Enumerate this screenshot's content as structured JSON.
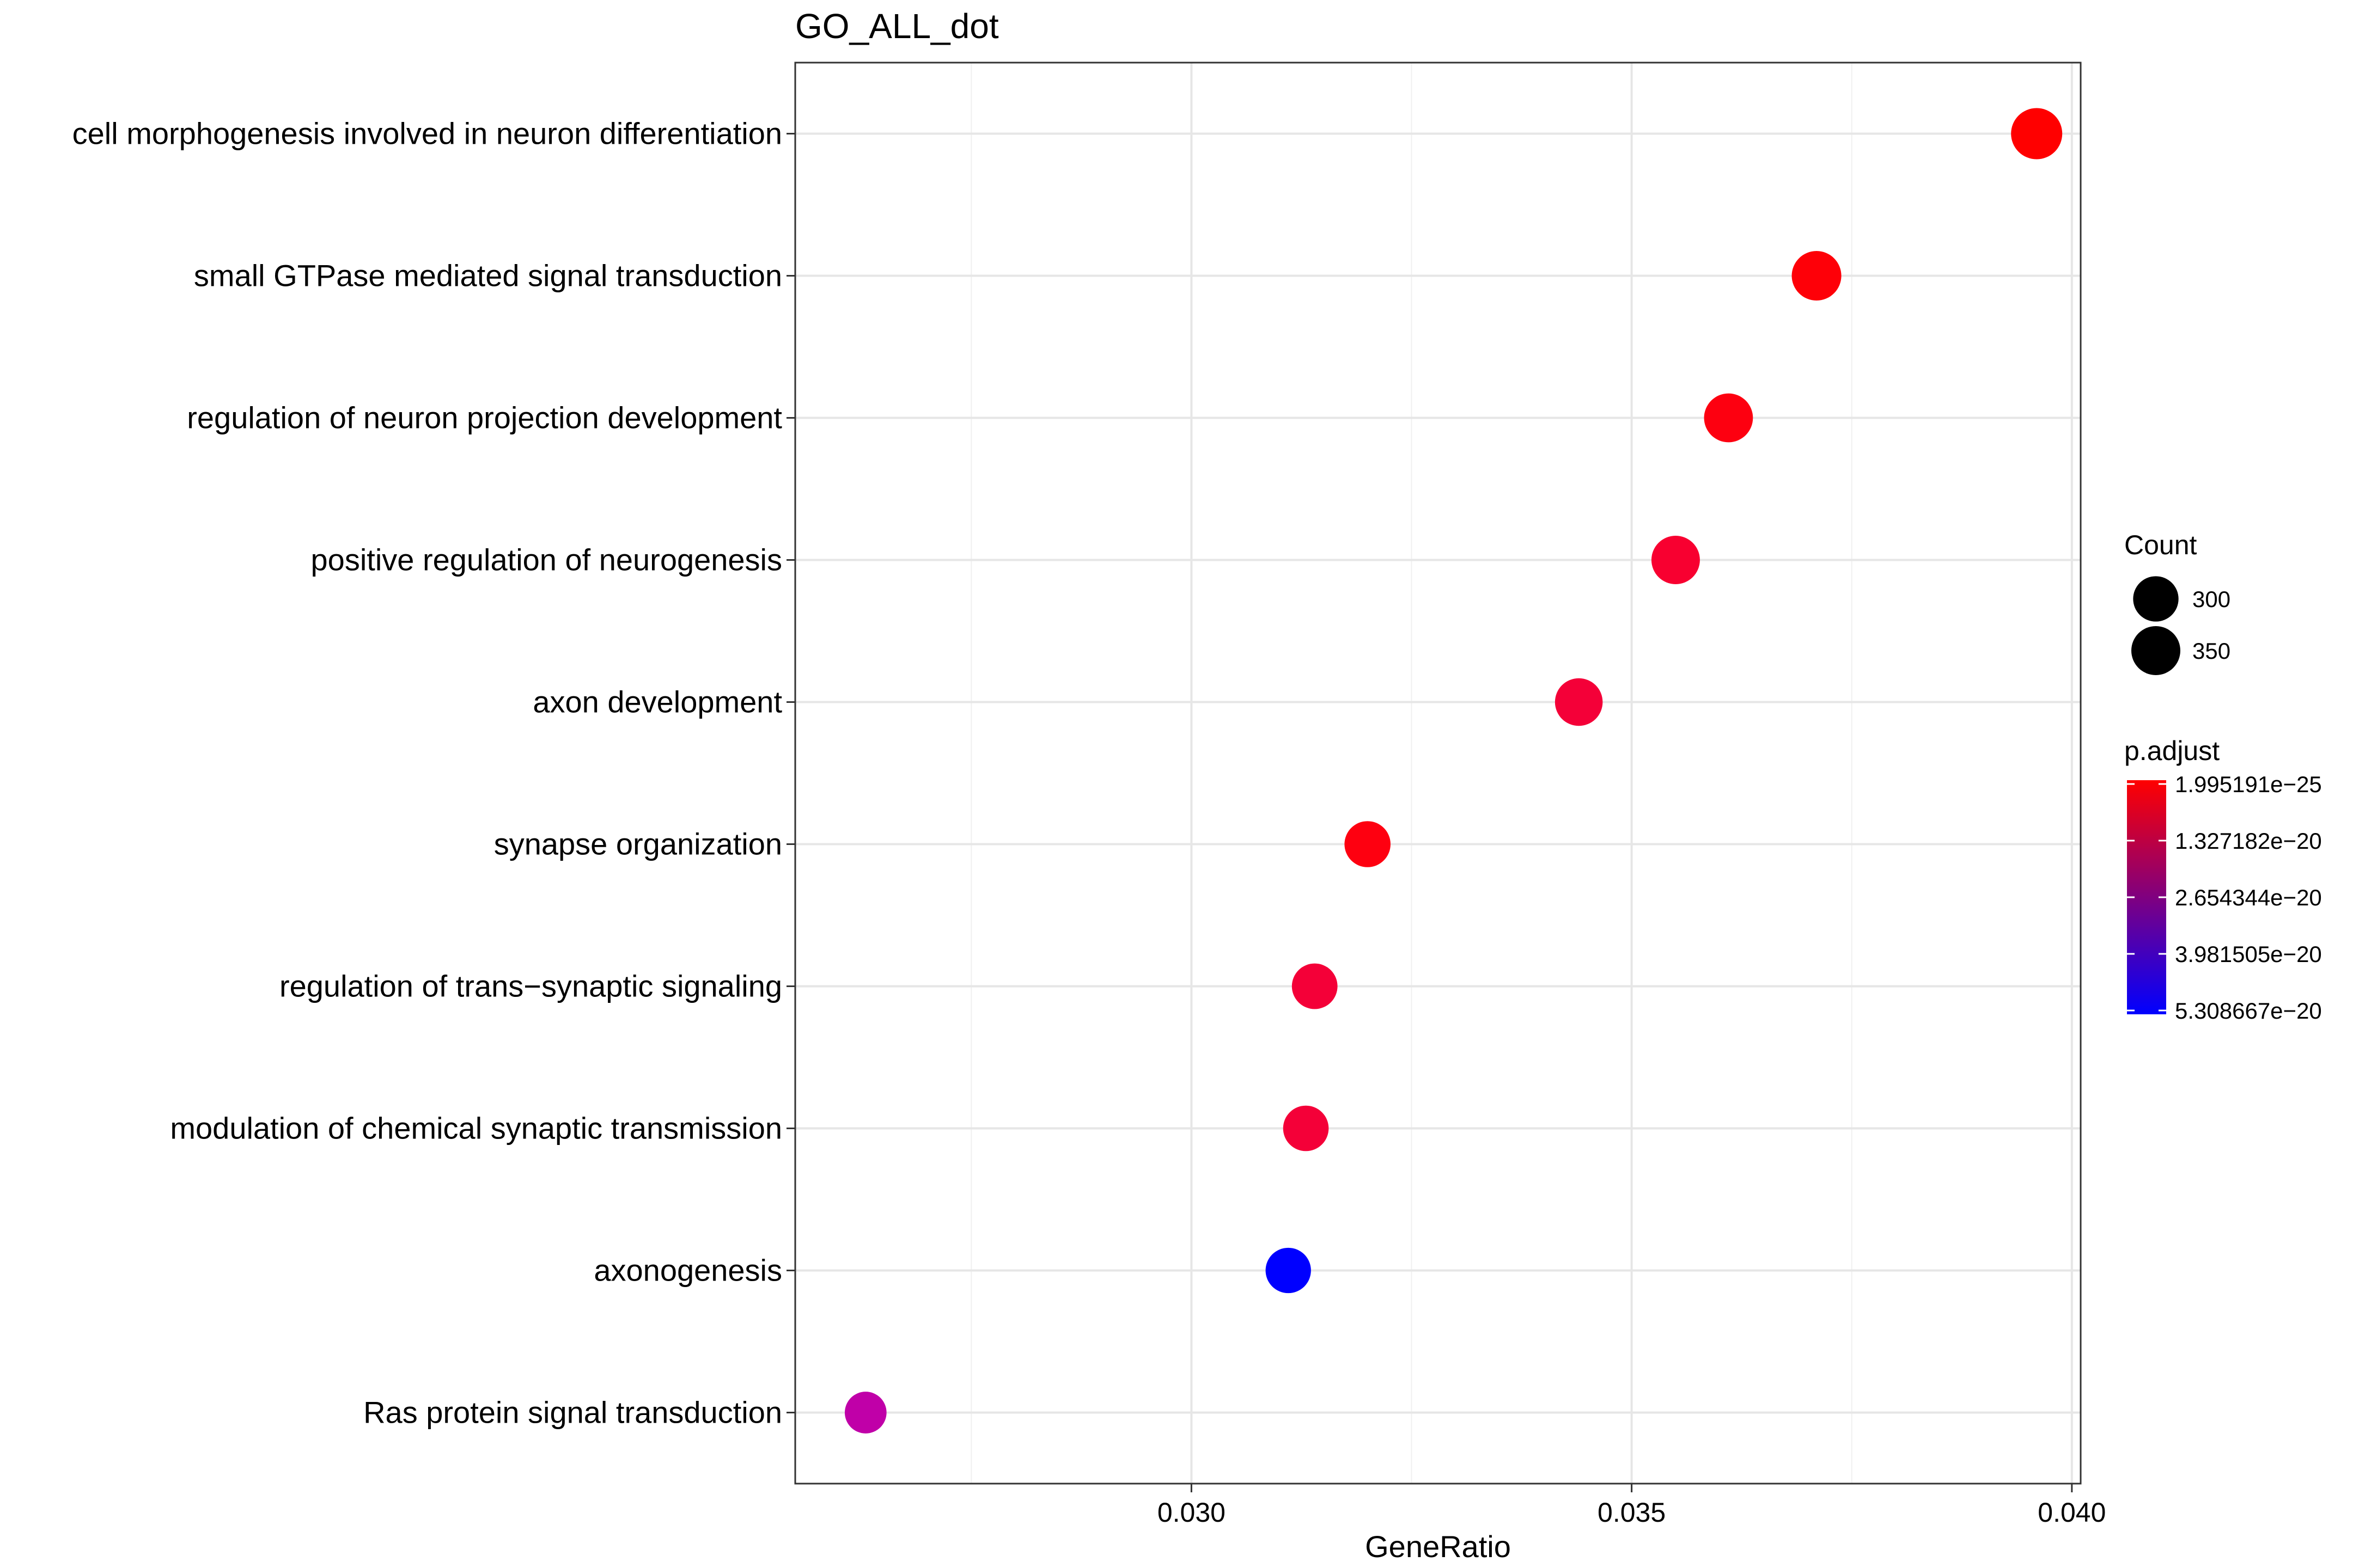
{
  "chart_data": {
    "type": "scatter",
    "title": "GO_ALL_dot",
    "xlabel": "GeneRatio",
    "ylabel": "",
    "xlim": [
      0.0255,
      0.0401
    ],
    "x_ticks": [
      {
        "value": 0.03,
        "label": "0.030"
      },
      {
        "value": 0.035,
        "label": "0.035"
      },
      {
        "value": 0.04,
        "label": "0.040"
      }
    ],
    "grid": true,
    "categories": [
      "cell morphogenesis involved in neuron differentiation",
      "small GTPase mediated signal transduction",
      "regulation of neuron projection development",
      "positive regulation of neurogenesis",
      "axon development",
      "synapse organization",
      "regulation of trans−synaptic signaling",
      "modulation of chemical synaptic transmission",
      "axonogenesis",
      "Ras protein signal transduction"
    ],
    "points": [
      {
        "term": "cell morphogenesis involved in neuron differentiation",
        "gene_ratio": 0.0396,
        "count": 382,
        "p_adjust": 2e-25,
        "color": "#ff0000"
      },
      {
        "term": "small GTPase mediated signal transduction",
        "gene_ratio": 0.0371,
        "count": 358,
        "p_adjust": 1e-22,
        "color": "#fe0008"
      },
      {
        "term": "regulation of neuron projection development",
        "gene_ratio": 0.0361,
        "count": 348,
        "p_adjust": 2e-22,
        "color": "#fd0010"
      },
      {
        "term": "positive regulation of neurogenesis",
        "gene_ratio": 0.0355,
        "count": 342,
        "p_adjust": 7e-21,
        "color": "#f80030"
      },
      {
        "term": "axon development",
        "gene_ratio": 0.0344,
        "count": 331,
        "p_adjust": 9e-21,
        "color": "#f40038"
      },
      {
        "term": "synapse organization",
        "gene_ratio": 0.032,
        "count": 309,
        "p_adjust": 1e-21,
        "color": "#fe0010"
      },
      {
        "term": "regulation of trans−synaptic signaling",
        "gene_ratio": 0.0314,
        "count": 303,
        "p_adjust": 9e-21,
        "color": "#f40038"
      },
      {
        "term": "modulation of chemical synaptic transmission",
        "gene_ratio": 0.0313,
        "count": 302,
        "p_adjust": 9e-21,
        "color": "#f40038"
      },
      {
        "term": "axonogenesis",
        "gene_ratio": 0.0311,
        "count": 300,
        "p_adjust": 5.3e-20,
        "color": "#0000ff"
      },
      {
        "term": "Ras protein signal transduction",
        "gene_ratio": 0.0263,
        "count": 254,
        "p_adjust": 3e-20,
        "color": "#c000a8"
      }
    ],
    "legend_count": {
      "title": "Count",
      "entries": [
        {
          "label": "300",
          "value": 300
        },
        {
          "label": "350",
          "value": 350
        }
      ]
    },
    "legend_padjust": {
      "title": "p.adjust",
      "labels": [
        "1.995191e−25",
        "1.327182e−20",
        "2.654344e−20",
        "3.981505e−20",
        "5.308667e−20"
      ],
      "colors": [
        "#ff0000",
        "#0000ff"
      ]
    },
    "legend_placement": "right"
  }
}
